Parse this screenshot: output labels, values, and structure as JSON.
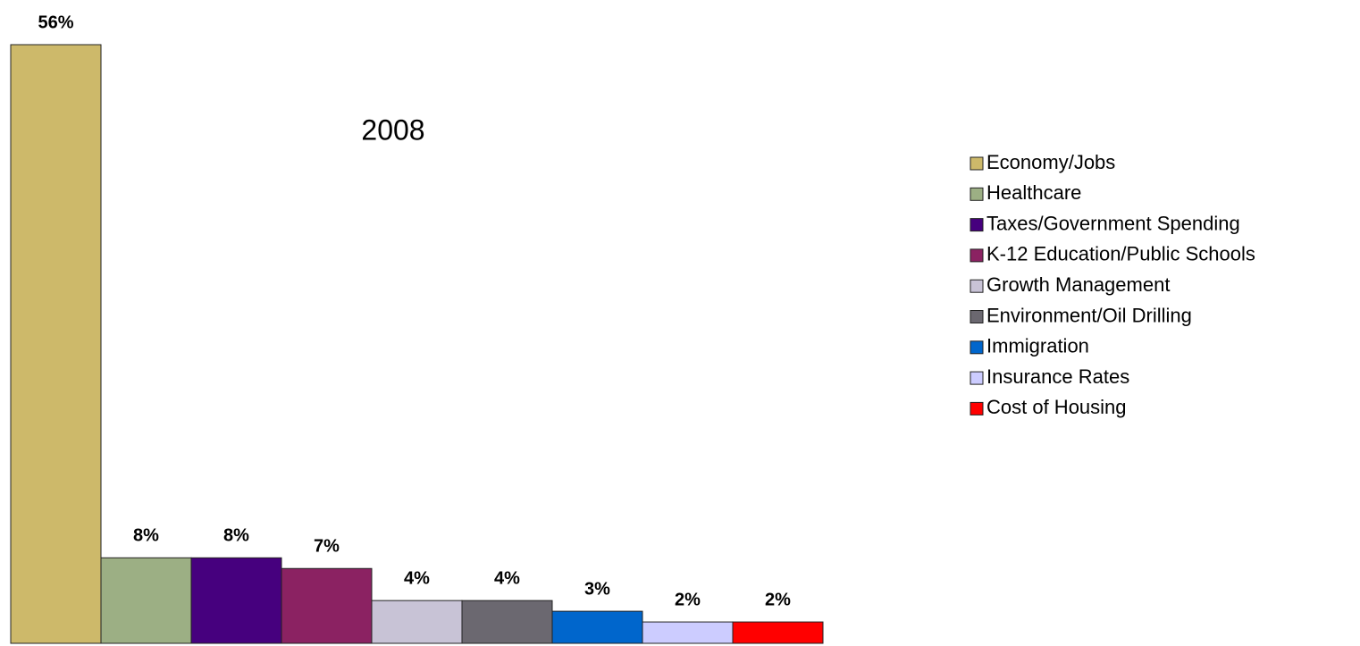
{
  "chart_data": {
    "type": "bar",
    "title": "2008",
    "series": [
      {
        "name": "Economy/Jobs",
        "color": "#cdb96a",
        "values": [
          56
        ],
        "value_labels": [
          "56%"
        ]
      },
      {
        "name": "Healthcare",
        "color": "#9caf84",
        "values": [
          8
        ],
        "value_labels": [
          "8%"
        ]
      },
      {
        "name": "Taxes/Government Spending",
        "color": "#46007e",
        "values": [
          8
        ],
        "value_labels": [
          "8%"
        ]
      },
      {
        "name": "K-12 Education/Public Schools",
        "color": "#8b2262",
        "values": [
          7
        ],
        "value_labels": [
          "7%"
        ]
      },
      {
        "name": "Growth Management",
        "color": "#c8c3d6",
        "values": [
          4
        ],
        "value_labels": [
          "4%"
        ]
      },
      {
        "name": "Environment/Oil Drilling",
        "color": "#6b6870",
        "values": [
          4
        ],
        "value_labels": [
          "4%"
        ]
      },
      {
        "name": "Immigration",
        "color": "#0066cc",
        "values": [
          3
        ],
        "value_labels": [
          "3%"
        ]
      },
      {
        "name": "Insurance Rates",
        "color": "#ccccff",
        "values": [
          2
        ],
        "value_labels": [
          "2%"
        ]
      },
      {
        "name": "Cost of Housing",
        "color": "#ff0000",
        "values": [
          2
        ],
        "value_labels": [
          "2%"
        ]
      }
    ]
  }
}
